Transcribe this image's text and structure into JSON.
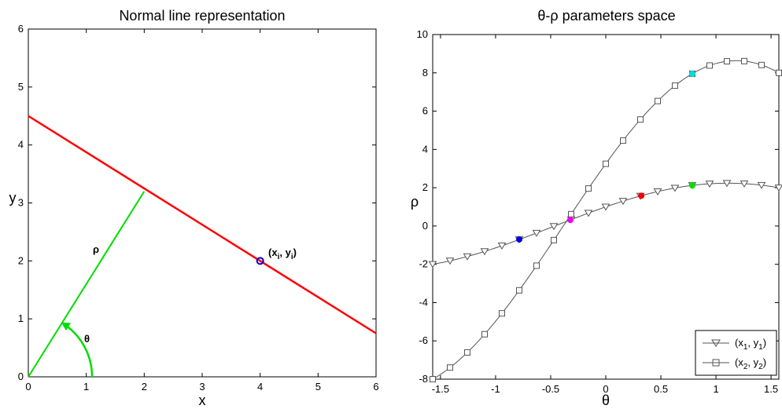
{
  "chart_data": [
    {
      "type": "line",
      "title": "Normal line representation",
      "xlabel": "x",
      "ylabel": "y",
      "xlim": [
        0,
        6
      ],
      "ylim": [
        0,
        6
      ],
      "xticks": [
        0,
        1,
        2,
        3,
        4,
        5,
        6
      ],
      "yticks": [
        0,
        1,
        2,
        3,
        4,
        5,
        6
      ],
      "grid": false,
      "series": [
        {
          "role": "line",
          "color": "#ff0000",
          "x": [
            0,
            6
          ],
          "y": [
            4.5,
            0.75
          ]
        },
        {
          "role": "normal",
          "color": "#00dd00",
          "x": [
            0,
            2
          ],
          "y": [
            0,
            3.2
          ]
        },
        {
          "role": "angle-arc",
          "color": "#00dd00",
          "center": [
            0,
            0
          ],
          "radius": 1.1,
          "angle_range_deg": [
            0,
            58
          ]
        },
        {
          "role": "point",
          "color": "#0000cc",
          "x": [
            4
          ],
          "y": [
            2
          ]
        }
      ],
      "annotations": {
        "rho": "ρ",
        "theta": "θ",
        "point": {
          "base1": "(x",
          "sub1": "i",
          "mid": ", y",
          "sub2": "i",
          "end": ")"
        }
      }
    },
    {
      "type": "line",
      "title": "θ-ρ parameters space",
      "xlabel": "θ",
      "ylabel": "ρ",
      "xlim": [
        -1.5708,
        1.5708
      ],
      "ylim": [
        -8,
        10
      ],
      "xticks": [
        -1.5,
        -1,
        -0.5,
        0,
        0.5,
        1,
        1.5
      ],
      "yticks": [
        -8,
        -6,
        -4,
        -2,
        0,
        2,
        4,
        6,
        8,
        10
      ],
      "grid": false,
      "legend_position": "bottom-right",
      "series": [
        {
          "name_base": "(x",
          "name_sub1": "1",
          "name_mid": ", y",
          "name_sub2": "1",
          "name_end": ")",
          "marker": "triangle-down",
          "color": "#555555",
          "params": [
            1,
            2
          ]
        },
        {
          "name_base": "(x",
          "name_sub1": "2",
          "name_mid": ", y",
          "name_sub2": "2",
          "name_end": ")",
          "marker": "square",
          "color": "#555555",
          "params": [
            3.25,
            8
          ]
        }
      ],
      "highlight_points": [
        {
          "theta": -0.785,
          "rho": -0.7,
          "color": "#0000dd"
        },
        {
          "theta": -0.322,
          "rho": 0.32,
          "color": "#ee00ee"
        },
        {
          "theta": 0.322,
          "rho": 1.58,
          "color": "#ee0000"
        },
        {
          "theta": 0.785,
          "rho": 2.12,
          "color": "#00dd00"
        },
        {
          "theta": 0.785,
          "rho": 7.95,
          "color": "#00dddd"
        }
      ]
    }
  ]
}
